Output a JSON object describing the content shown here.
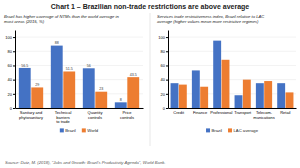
{
  "title": "Chart 1 – Brazilian non-trade restrictions are above average",
  "annotations": [
    "Source: Dutz, M. (2018), \"Jobs and Growth: Brazil's Productivity Agenda\", World Bank."
  ],
  "chart_data": [
    {
      "type": "bar",
      "subtitle": "Brazil has higher coverage of NTMs than the world average in\nmost areas (2015, %)",
      "categories": [
        "Sanitary and\nphytosanitary",
        "Technical\nbarriers\nto trade",
        "Quantity\ncontrols",
        "Price\ncontrols"
      ],
      "series": [
        {
          "name": "Brazil",
          "color": "#4472c4",
          "values": [
            56.5,
            88,
            56,
            8
          ]
        },
        {
          "name": "World",
          "color": "#ed7d31",
          "values": [
            29,
            51.5,
            23,
            43.5
          ]
        }
      ],
      "ylim": [
        0,
        110
      ],
      "yticks": [
        0,
        20,
        40,
        60,
        80,
        100
      ],
      "grid": true,
      "legend": "bottom",
      "data_labels": true
    },
    {
      "type": "bar",
      "subtitle": "Services trade restrictiveness index, Brazil relative to LAC\naverage (higher values mean more restrictive regimes)",
      "categories": [
        "Credit",
        "Finance",
        "Professional",
        "Transport",
        "Telecom-\nmunications",
        "Retail"
      ],
      "series": [
        {
          "name": "Brazil",
          "color": "#4472c4",
          "values": [
            35,
            53,
            95,
            18,
            35,
            35
          ]
        },
        {
          "name": "LAC average",
          "color": "#ed7d31",
          "values": [
            33,
            30,
            68,
            40,
            38,
            22
          ]
        }
      ],
      "ylim": [
        0,
        110
      ],
      "yticks": [
        0,
        20,
        40,
        60,
        80,
        100
      ],
      "grid": true,
      "legend": "bottom",
      "data_labels": false
    }
  ]
}
